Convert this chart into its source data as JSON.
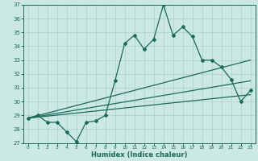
{
  "xlabel": "Humidex (Indice chaleur)",
  "xlim": [
    -0.5,
    23.5
  ],
  "ylim": [
    27,
    37
  ],
  "yticks": [
    27,
    28,
    29,
    30,
    31,
    32,
    33,
    34,
    35,
    36,
    37
  ],
  "xticks": [
    0,
    1,
    2,
    3,
    4,
    5,
    6,
    7,
    8,
    9,
    10,
    11,
    12,
    13,
    14,
    15,
    16,
    17,
    18,
    19,
    20,
    21,
    22,
    23
  ],
  "bg_color": "#cce8e2",
  "line_color": "#1a6b5a",
  "grid_color": "#aad0c8",
  "line1_x": [
    0,
    1,
    2,
    3,
    4,
    5,
    6,
    7,
    8,
    9,
    10,
    11,
    12,
    13,
    14,
    15,
    16,
    17,
    18,
    19,
    20,
    21,
    22,
    23
  ],
  "line1_y": [
    28.8,
    29.0,
    28.5,
    28.5,
    27.8,
    27.1,
    28.5,
    28.6,
    29.0,
    31.5,
    34.2,
    34.8,
    33.8,
    34.5,
    37.0,
    34.8,
    35.4,
    34.7,
    33.0,
    33.0,
    32.5,
    31.6,
    30.0,
    30.8
  ],
  "line2_x": [
    0,
    23
  ],
  "line2_y": [
    28.8,
    33.0
  ],
  "line3_x": [
    0,
    23
  ],
  "line3_y": [
    28.8,
    31.5
  ],
  "line4_x": [
    0,
    23
  ],
  "line4_y": [
    28.8,
    30.5
  ]
}
